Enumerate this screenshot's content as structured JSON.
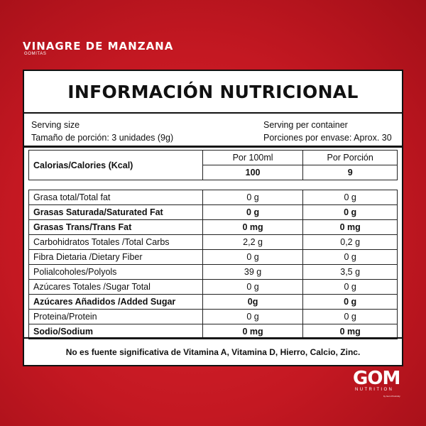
{
  "brand": {
    "title": "VINAGRE DE MANZANA",
    "subtitle": "GOMITAS"
  },
  "panel": {
    "title": "INFORMACIÓN NUTRICIONAL",
    "serving": {
      "size_en": "Serving size",
      "size_es": "Tamaño de porción: 3 unidades (9g)",
      "per_container_en": "Serving per container",
      "per_container_es": "Porciones por envase: Aprox. 30"
    },
    "headers": {
      "calories_label": "Calorias/Calories (Kcal)",
      "per100": "Por 100ml",
      "per_portion": "Por Porción",
      "cal_per100": "100",
      "cal_per_portion": "9"
    },
    "rows": [
      {
        "label": "Grasa total/Total fat",
        "per100": "0 g",
        "per_portion": "0 g",
        "bold": false
      },
      {
        "label": "Grasas Saturada/Saturated Fat",
        "per100": "0 g",
        "per_portion": "0 g",
        "bold": true
      },
      {
        "label": "Grasas Trans/Trans Fat",
        "per100": "0 mg",
        "per_portion": "0 mg",
        "bold": true
      },
      {
        "label": "Carbohidratos Totales /Total Carbs",
        "per100": "2,2 g",
        "per_portion": "0,2 g",
        "bold": false
      },
      {
        "label": "Fibra Dietaria  /Dietary Fiber",
        "per100": "0 g",
        "per_portion": "0 g",
        "bold": false
      },
      {
        "label": "Polialcoholes/Polyols",
        "per100": "39 g",
        "per_portion": "3,5 g",
        "bold": false
      },
      {
        "label": "Azúcares Totales /Sugar Total",
        "per100": "0 g",
        "per_portion": "0 g",
        "bold": false
      },
      {
        "label": "Azúcares Añadidos /Added Sugar",
        "per100": "0g",
        "per_portion": "0 g",
        "bold": true
      },
      {
        "label": "Proteina/Protein",
        "per100": "0 g",
        "per_portion": "0 g",
        "bold": false
      },
      {
        "label": "Sodio/Sodium",
        "per100": "0 mg",
        "per_portion": "0 mg",
        "bold": true
      }
    ],
    "footer": "No es fuente significativa de Vitamina A, Vitamina D, Hierro, Calcio, Zinc."
  },
  "logo": {
    "name": "GOM",
    "sub": "NUTRITION",
    "by": "by Gom Proximity"
  },
  "colors": {
    "background": "#c41822",
    "panel": "#ffffff",
    "text": "#111111"
  }
}
